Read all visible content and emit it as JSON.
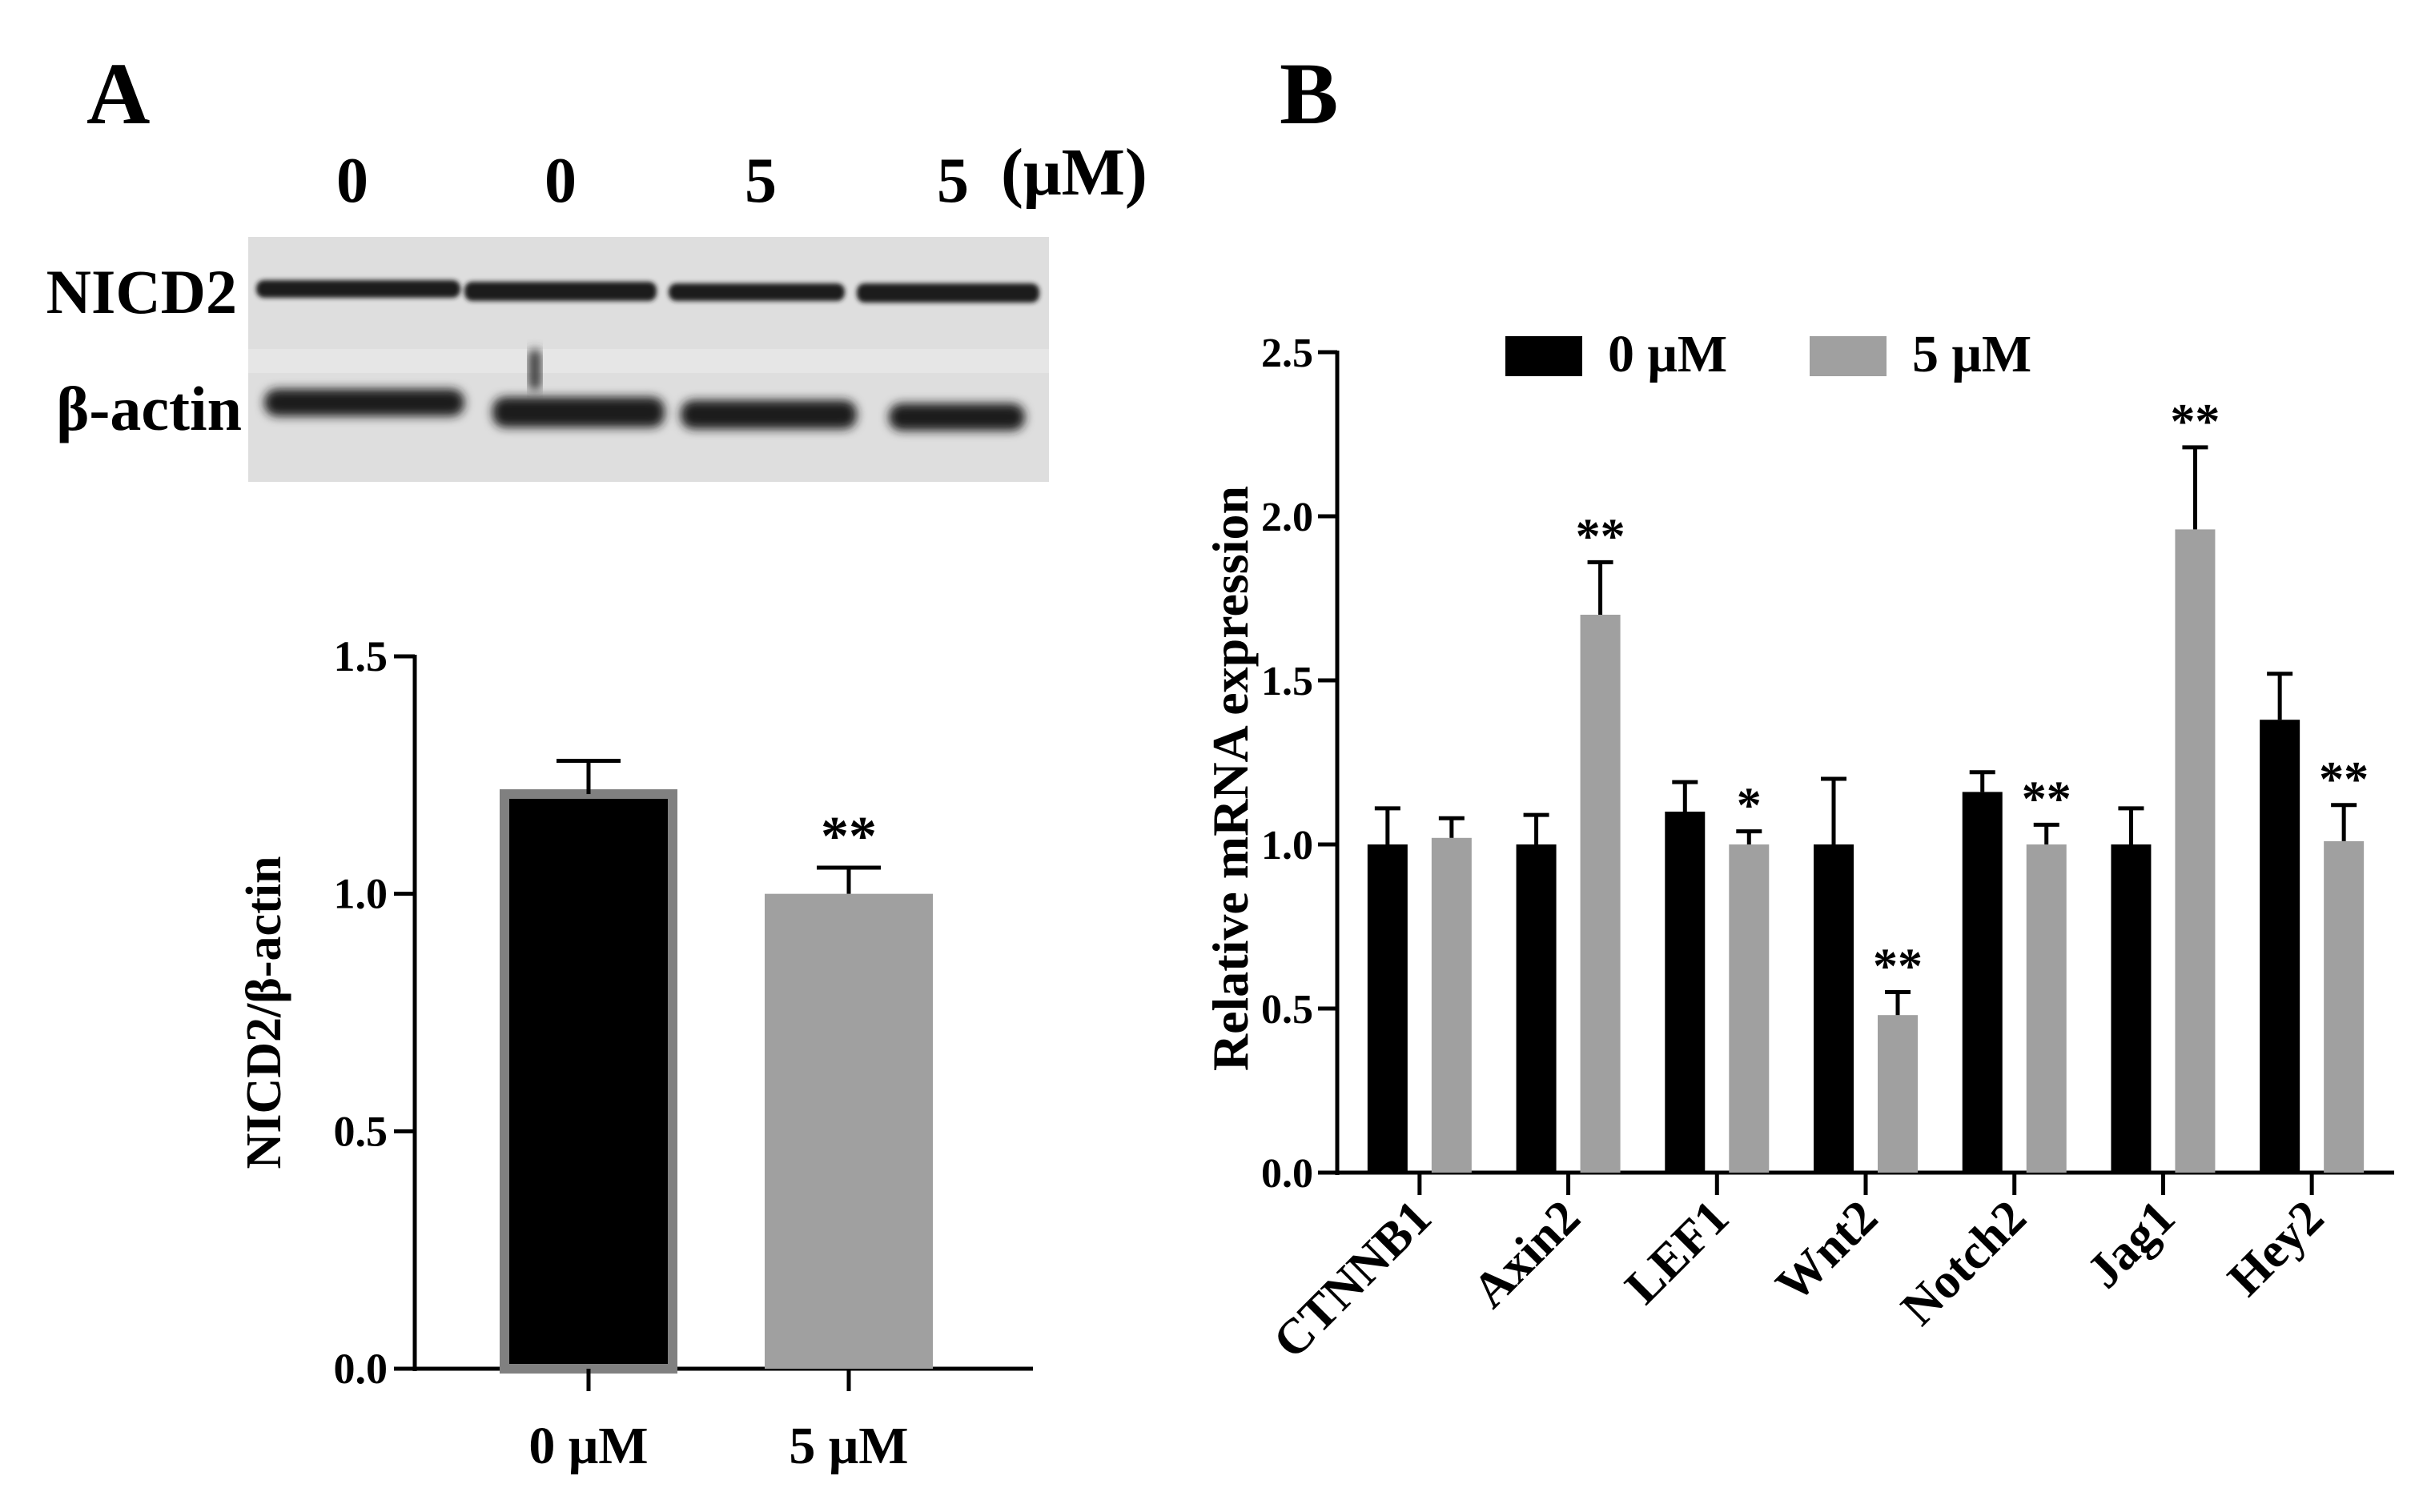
{
  "panels": {
    "a": {
      "letter": "A",
      "blot": {
        "lanes": [
          "0",
          "0",
          "5",
          "5"
        ],
        "unit": "(μM)",
        "bands": [
          "NICD2",
          "β-actin"
        ]
      },
      "chart_data": {
        "type": "bar",
        "title": "",
        "xlabel": "",
        "ylabel": "NICD2/β-actin",
        "categories": [
          "0 μM",
          "5 μM"
        ],
        "values": [
          1.21,
          1.0
        ],
        "errors": [
          0.07,
          0.055
        ],
        "significance": [
          "",
          "**"
        ],
        "ylim": [
          0,
          1.5
        ],
        "yticks": [
          "0.0",
          "0.5",
          "1.0",
          "1.5"
        ],
        "colors": [
          "#000000",
          "#a0a0a0"
        ],
        "grid": false
      }
    },
    "b": {
      "letter": "B",
      "chart_data": {
        "type": "bar",
        "title": "",
        "xlabel": "",
        "ylabel": "Relative mRNA expression",
        "categories": [
          "CTNNB1",
          "Axin2",
          "LEF1",
          "Wnt2",
          "Notch2",
          "Jag1",
          "Hey2"
        ],
        "series": [
          {
            "name": "0 μM",
            "color": "#000000",
            "values": [
              1.0,
              1.0,
              1.1,
              1.0,
              1.16,
              1.0,
              1.38
            ],
            "errors": [
              0.11,
              0.09,
              0.09,
              0.2,
              0.06,
              0.11,
              0.14
            ],
            "significance": [
              "",
              "",
              "",
              "",
              "",
              "",
              ""
            ]
          },
          {
            "name": "5 μM",
            "color": "#a0a0a0",
            "values": [
              1.02,
              1.7,
              1.0,
              0.48,
              1.0,
              1.96,
              1.01
            ],
            "errors": [
              0.06,
              0.16,
              0.04,
              0.07,
              0.06,
              0.25,
              0.11
            ],
            "significance": [
              "",
              "**",
              "*",
              "**",
              "**",
              "**",
              "**"
            ]
          }
        ],
        "ylim": [
          0,
          2.5
        ],
        "yticks": [
          "0.0",
          "0.5",
          "1.0",
          "1.5",
          "2.0",
          "2.5"
        ],
        "legend": "top",
        "grid": false
      }
    }
  }
}
